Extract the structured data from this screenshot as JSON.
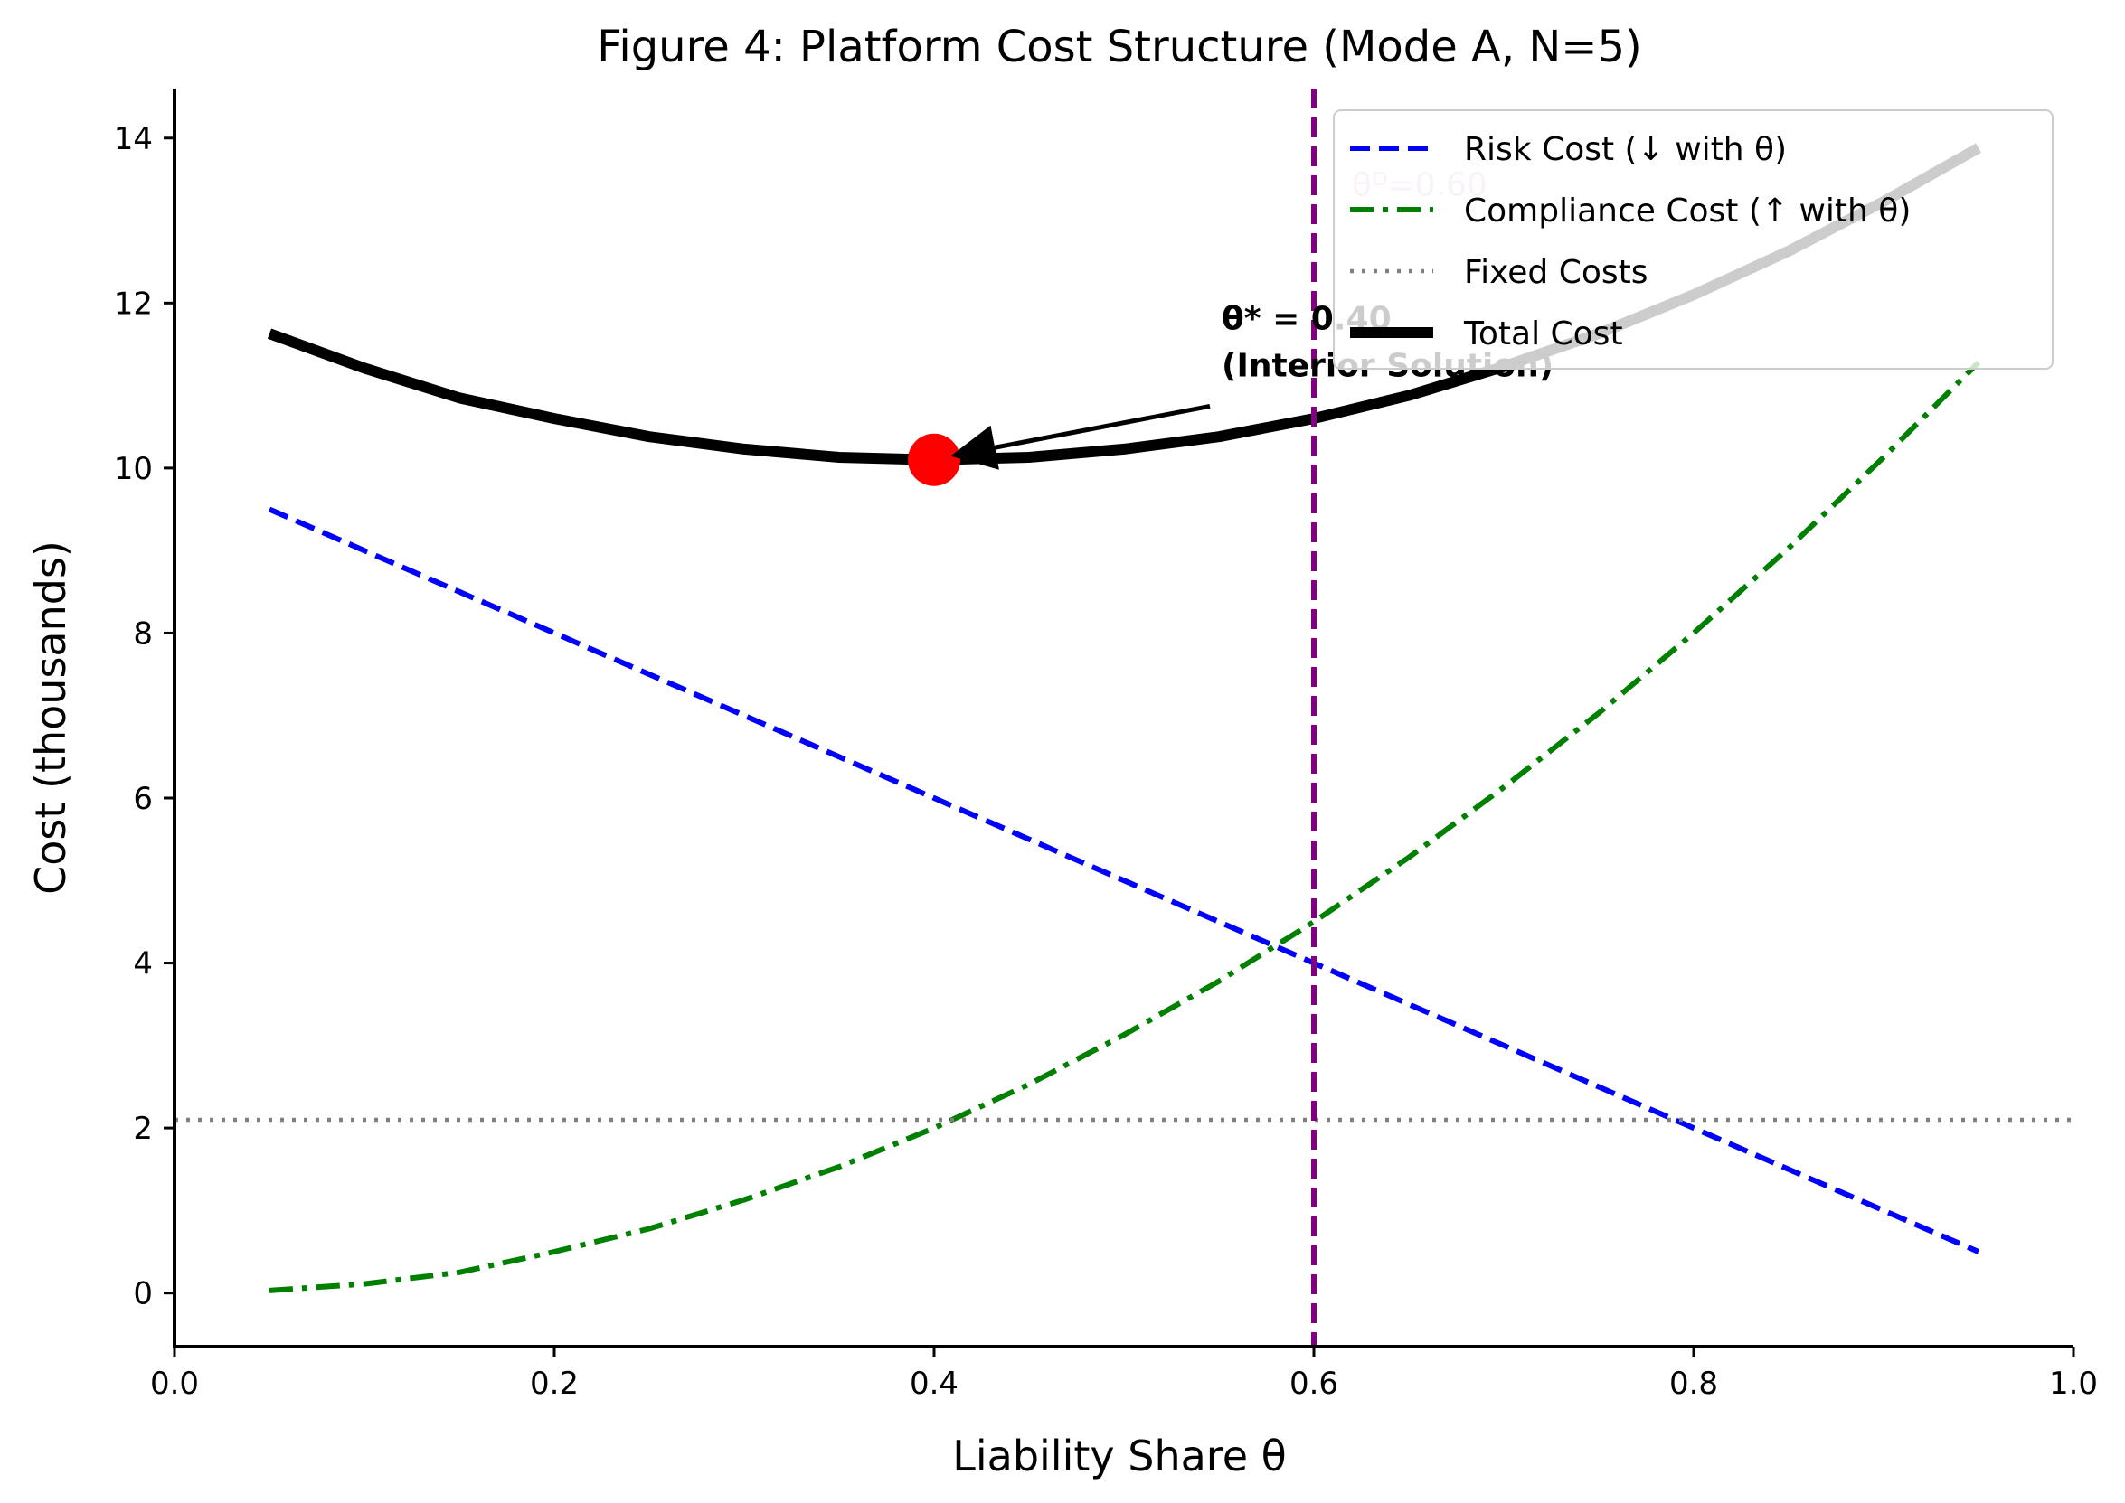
{
  "chart_data": {
    "type": "line",
    "title": "Figure 4: Platform Cost Structure (Mode A, N=5)",
    "xlabel": "Liability Share θ",
    "ylabel": "Cost (thousands)",
    "xlim": [
      0.0,
      1.0
    ],
    "ylim": [
      -0.65,
      14.6
    ],
    "xticks": [
      0.0,
      0.2,
      0.4,
      0.6,
      0.8,
      1.0
    ],
    "xtick_labels": [
      "0.0",
      "0.2",
      "0.4",
      "0.6",
      "0.8",
      "1.0"
    ],
    "yticks": [
      0,
      2,
      4,
      6,
      8,
      10,
      12,
      14
    ],
    "ytick_labels": [
      "0",
      "2",
      "4",
      "6",
      "8",
      "10",
      "12",
      "14"
    ],
    "grid": false,
    "legend_position": "top-right",
    "x": [
      0.05,
      0.1,
      0.15,
      0.2,
      0.25,
      0.3,
      0.35,
      0.4,
      0.45,
      0.5,
      0.55,
      0.6,
      0.65,
      0.7,
      0.75,
      0.8,
      0.85,
      0.9,
      0.95
    ],
    "series": [
      {
        "name": "Risk Cost (↓ with θ)",
        "color": "#0000ff",
        "style": "dashed",
        "values": [
          9.5,
          9.0,
          8.5,
          8.0,
          7.5,
          7.0,
          6.5,
          6.0,
          5.5,
          5.0,
          4.5,
          4.0,
          3.5,
          3.0,
          2.5,
          2.0,
          1.5,
          1.0,
          0.5
        ]
      },
      {
        "name": "Compliance Cost (↑ with θ)",
        "color": "#008000",
        "style": "dashdot",
        "values": [
          0.03,
          0.11,
          0.25,
          0.5,
          0.78,
          1.13,
          1.53,
          2.0,
          2.53,
          3.13,
          3.78,
          4.5,
          5.28,
          6.13,
          7.03,
          8.0,
          9.03,
          10.13,
          11.28
        ]
      },
      {
        "name": "Fixed Costs",
        "color": "#808080",
        "style": "dotted",
        "values": [
          2.1,
          2.1,
          2.1,
          2.1,
          2.1,
          2.1,
          2.1,
          2.1,
          2.1,
          2.1,
          2.1,
          2.1,
          2.1,
          2.1,
          2.1,
          2.1,
          2.1,
          2.1,
          2.1
        ]
      },
      {
        "name": "Total Cost",
        "color": "#000000",
        "style": "solid",
        "values": [
          11.63,
          11.21,
          10.85,
          10.6,
          10.38,
          10.23,
          10.13,
          10.1,
          10.13,
          10.23,
          10.38,
          10.6,
          10.88,
          11.23,
          11.63,
          12.1,
          12.63,
          13.23,
          13.88
        ]
      }
    ],
    "optimum": {
      "x": 0.4,
      "y": 10.1,
      "color": "#ff0000"
    },
    "annotation": {
      "line1": "θ* = 0.40",
      "line2": "(Interior Solution)",
      "text_x": 0.55,
      "text_y": 11.1
    },
    "reference_line": {
      "x": 0.6,
      "label": "θᴰ=0.60",
      "color": "#800080"
    }
  }
}
